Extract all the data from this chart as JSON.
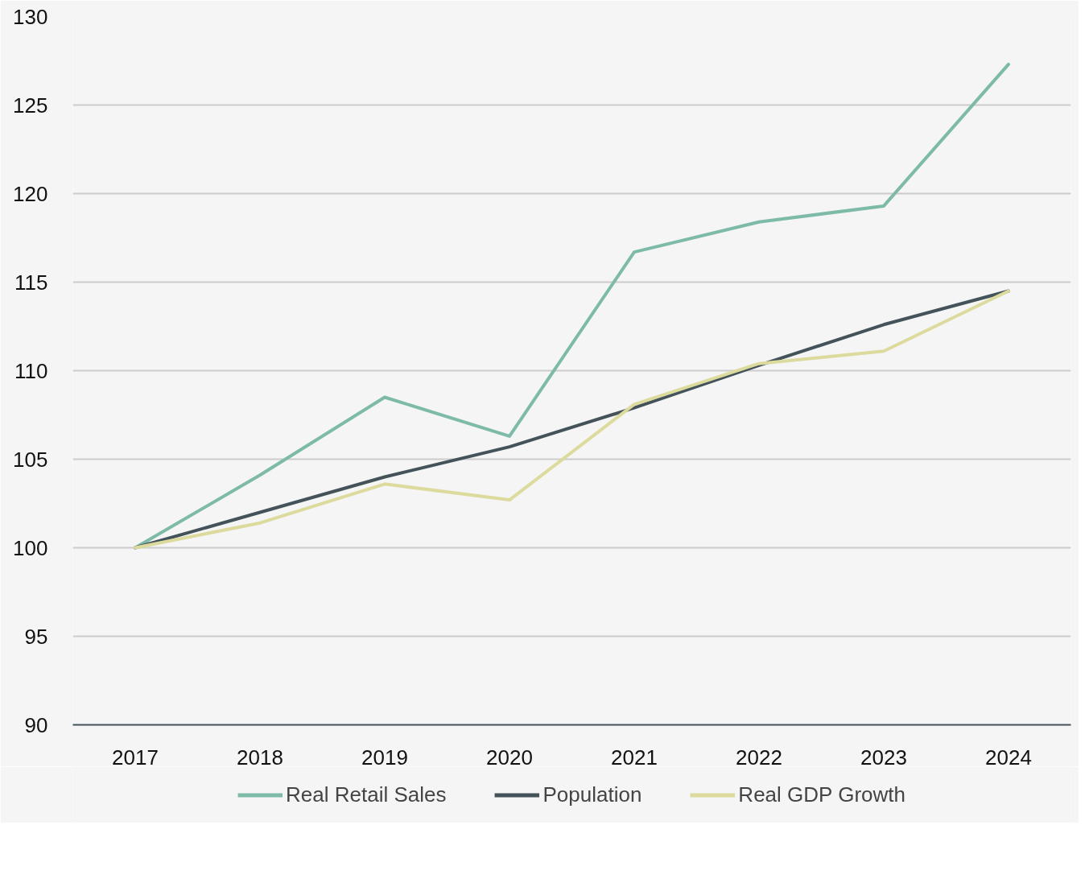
{
  "chart_data": {
    "type": "line",
    "categories": [
      "2017",
      "2018",
      "2019",
      "2020",
      "2021",
      "2022",
      "2023",
      "2024"
    ],
    "series": [
      {
        "name": "Real Retail Sales",
        "color": "#7dbaa8",
        "values": [
          100,
          104.1,
          108.5,
          106.3,
          116.7,
          118.4,
          119.3,
          127.3
        ]
      },
      {
        "name": "Population",
        "color": "#44535a",
        "values": [
          100,
          102.0,
          104.0,
          105.7,
          107.9,
          110.3,
          112.6,
          114.5
        ]
      },
      {
        "name": "Real GDP Growth",
        "color": "#dcdb9d",
        "values": [
          100,
          101.4,
          103.6,
          102.7,
          108.1,
          110.4,
          111.1,
          114.5
        ]
      }
    ],
    "ylim": [
      90,
      130
    ],
    "yticks": [
      90,
      95,
      100,
      105,
      110,
      115,
      120,
      125,
      130
    ],
    "grid": "y",
    "legend": "bottom",
    "marker": "none",
    "line_style": "solid"
  }
}
